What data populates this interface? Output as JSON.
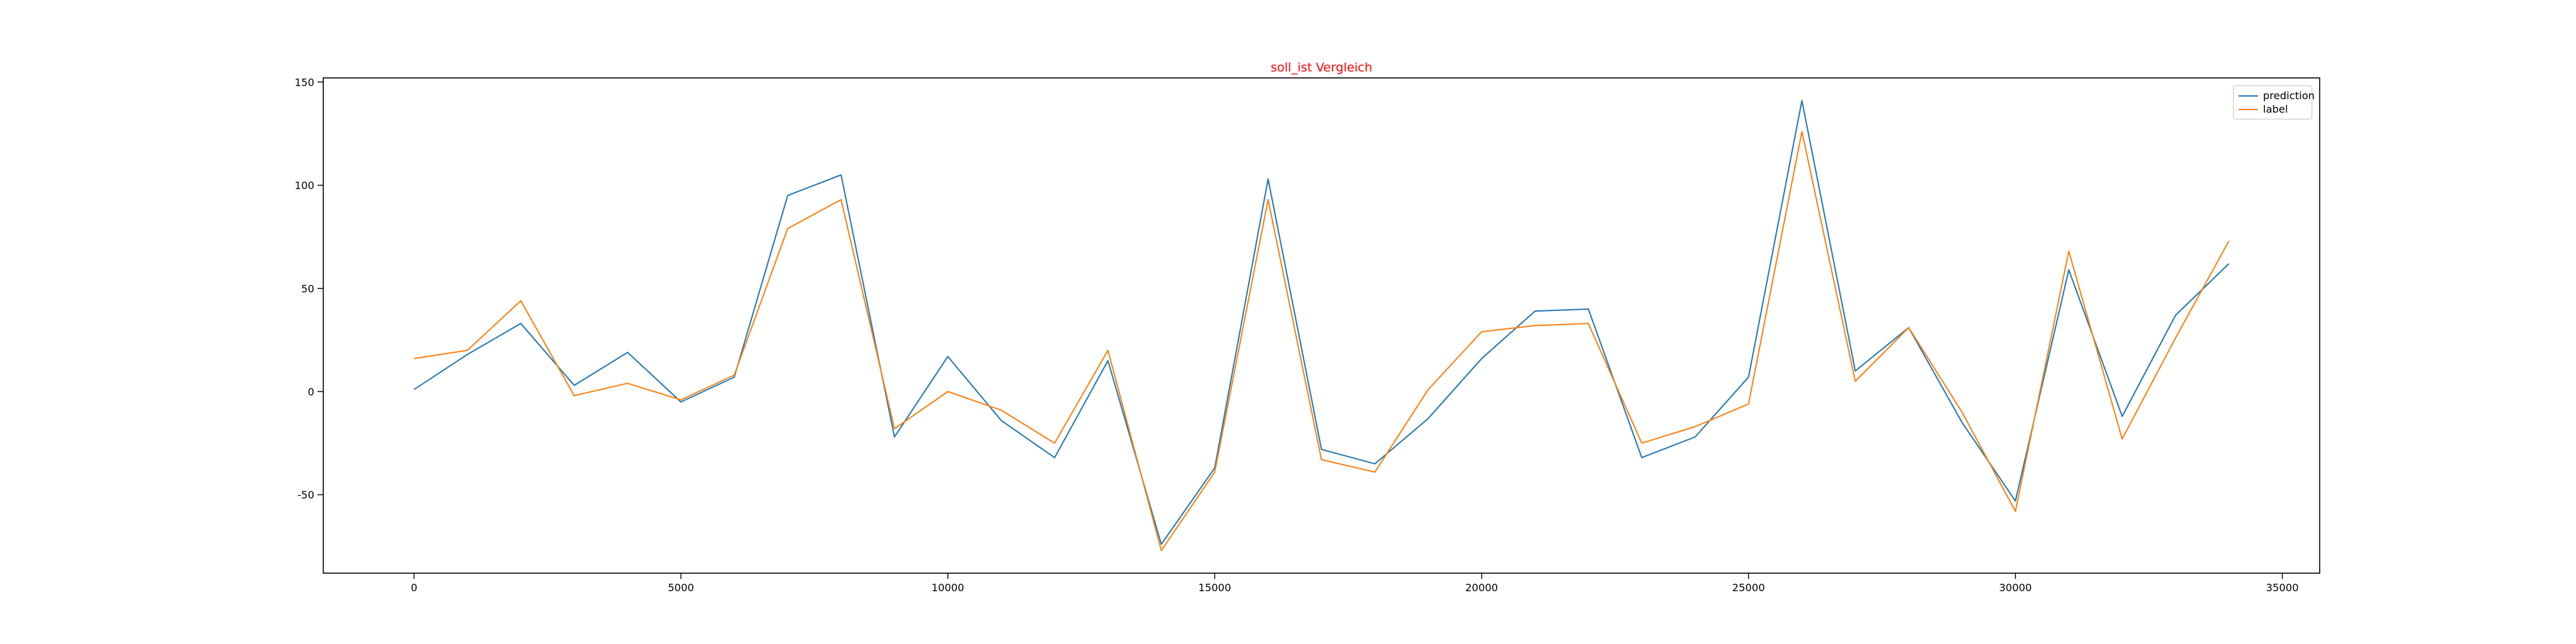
{
  "chart_data": {
    "type": "line",
    "title": "soll_ist Vergleich",
    "title_color": "#ff0000",
    "xlabel": "",
    "ylabel": "",
    "xlim": [
      -1700,
      35700
    ],
    "ylim": [
      -88,
      152
    ],
    "xticks": [
      0,
      5000,
      10000,
      15000,
      20000,
      25000,
      30000,
      35000
    ],
    "yticks": [
      -50,
      0,
      50,
      100,
      150
    ],
    "grid": false,
    "legend_position": "top-right",
    "x": [
      0,
      1000,
      2000,
      3000,
      4000,
      5000,
      6000,
      7000,
      8000,
      9000,
      10000,
      11000,
      12000,
      13000,
      14000,
      15000,
      16000,
      17000,
      18000,
      19000,
      20000,
      21000,
      22000,
      23000,
      24000,
      25000,
      26000,
      27000,
      28000,
      29000,
      30000,
      31000,
      32000,
      33000,
      34000
    ],
    "series": [
      {
        "name": "prediction",
        "color": "#1f77b4",
        "values": [
          1,
          18,
          33,
          3,
          19,
          -5,
          7,
          95,
          105,
          -22,
          17,
          -14,
          -32,
          15,
          -74,
          -37,
          103,
          -28,
          -35,
          -13,
          16,
          39,
          40,
          -32,
          -22,
          7,
          141,
          10,
          31,
          -15,
          -53,
          59,
          -12,
          37,
          62
        ]
      },
      {
        "name": "label",
        "color": "#ff7f0e",
        "values": [
          16,
          20,
          44,
          -2,
          4,
          -4,
          8,
          79,
          93,
          -18,
          0,
          -9,
          -25,
          20,
          -77,
          -39,
          93,
          -33,
          -39,
          1,
          29,
          32,
          33,
          -25,
          -17,
          -6,
          126,
          5,
          31,
          -10,
          -58,
          68,
          -23,
          26,
          73
        ]
      }
    ]
  }
}
